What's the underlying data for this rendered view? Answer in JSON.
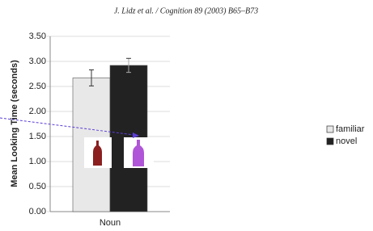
{
  "header": "J. Lidz et al. / Cognition 89 (2003) B65–B73",
  "chart_data": {
    "type": "bar",
    "y_label": "Mean Looking Time (seconds)",
    "categories": [
      "Noun"
    ],
    "series": [
      {
        "name": "familiar",
        "color": "#e8e8e8",
        "values": [
          2.67
        ],
        "errors": [
          0.16
        ]
      },
      {
        "name": "novel",
        "color": "#222222",
        "values": [
          2.92
        ],
        "errors": [
          0.14
        ]
      }
    ],
    "ylim": [
      0,
      3.5
    ],
    "yticks": [
      {
        "value": 0,
        "label": "0.00"
      },
      {
        "value": 0.5,
        "label": "0.50"
      },
      {
        "value": 1,
        "label": "1.00"
      },
      {
        "value": 1.5,
        "label": "1.50"
      },
      {
        "value": 2,
        "label": "2.00"
      },
      {
        "value": 2.5,
        "label": "2.50"
      },
      {
        "value": 3,
        "label": "3.00"
      },
      {
        "value": 3.5,
        "label": "3.50"
      }
    ],
    "grid": true
  }
}
